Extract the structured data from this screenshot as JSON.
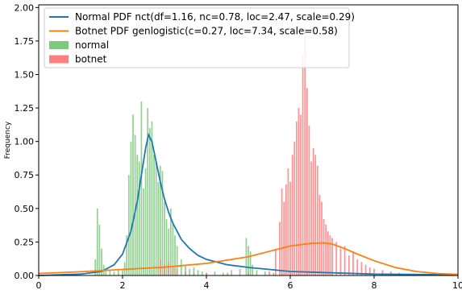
{
  "chart_data": {
    "type": "bar",
    "ylabel": "Frequency",
    "xlim": [
      0,
      10
    ],
    "ylim": [
      0,
      2.02
    ],
    "grid": false,
    "legend_position": "top-left",
    "x_ticks": [
      0,
      2,
      4,
      6,
      8,
      10
    ],
    "x_tick_labels": [
      "0",
      "2",
      "4",
      "6",
      "8",
      "10"
    ],
    "y_ticks": [
      0,
      0.25,
      0.5,
      0.75,
      1.0,
      1.25,
      1.5,
      1.75,
      2.0
    ],
    "y_tick_labels": [
      "0.00",
      "0.25",
      "0.50",
      "0.75",
      "1.00",
      "1.25",
      "1.50",
      "1.75",
      "2.00"
    ],
    "series": [
      {
        "name": "Normal PDF nct(df=1.16, nc=0.78, loc=2.47, scale=0.29)",
        "kind": "line",
        "color": "#1f77b4",
        "x": [
          0,
          1.0,
          1.5,
          1.8,
          2.0,
          2.2,
          2.35,
          2.45,
          2.55,
          2.62,
          2.7,
          2.8,
          2.9,
          3.0,
          3.1,
          3.2,
          3.4,
          3.6,
          3.8,
          4.0,
          4.5,
          5.0,
          6.0,
          7.0,
          8.0,
          10.0
        ],
        "y": [
          0.0,
          0.01,
          0.03,
          0.08,
          0.16,
          0.33,
          0.55,
          0.75,
          0.95,
          1.05,
          1.0,
          0.85,
          0.7,
          0.57,
          0.47,
          0.39,
          0.27,
          0.2,
          0.15,
          0.12,
          0.08,
          0.06,
          0.03,
          0.02,
          0.01,
          0.005
        ]
      },
      {
        "name": "Botnet PDF genlogistic(c=0.27, loc=7.34, scale=0.58)",
        "kind": "line",
        "color": "#ff7f0e",
        "x": [
          0,
          1,
          2,
          3,
          4,
          5,
          5.5,
          6.0,
          6.5,
          6.8,
          7.0,
          7.3,
          7.6,
          8.0,
          8.5,
          9.0,
          9.5,
          10.0
        ],
        "y": [
          0.015,
          0.028,
          0.045,
          0.062,
          0.09,
          0.14,
          0.18,
          0.22,
          0.24,
          0.243,
          0.235,
          0.2,
          0.16,
          0.11,
          0.06,
          0.03,
          0.015,
          0.008
        ]
      },
      {
        "name": "normal",
        "kind": "histogram",
        "color": "#7fc97f",
        "x": [
          1.35,
          1.4,
          1.45,
          1.5,
          1.55,
          1.6,
          1.7,
          1.8,
          1.9,
          2.0,
          2.05,
          2.1,
          2.15,
          2.2,
          2.25,
          2.3,
          2.35,
          2.4,
          2.45,
          2.5,
          2.55,
          2.6,
          2.65,
          2.7,
          2.75,
          2.8,
          2.85,
          2.9,
          2.95,
          3.0,
          3.05,
          3.1,
          3.15,
          3.2,
          3.25,
          3.3,
          3.4,
          3.5,
          3.6,
          3.7,
          3.8,
          3.9,
          4.0,
          4.2,
          4.4,
          4.6,
          4.8,
          4.95,
          5.0,
          5.05,
          5.1,
          5.2,
          5.4,
          5.6,
          5.8,
          6.0,
          6.2,
          6.4,
          6.6,
          6.8,
          7.0
        ],
        "y": [
          0.12,
          0.5,
          0.38,
          0.2,
          0.08,
          0.05,
          0.04,
          0.03,
          0.04,
          0.05,
          0.1,
          0.3,
          0.75,
          1.0,
          1.2,
          1.05,
          0.9,
          0.85,
          1.3,
          0.65,
          0.8,
          1.25,
          1.1,
          1.15,
          0.9,
          0.85,
          0.7,
          0.82,
          0.78,
          0.55,
          0.42,
          0.35,
          0.5,
          0.38,
          0.3,
          0.22,
          0.12,
          0.08,
          0.05,
          0.06,
          0.04,
          0.03,
          0.02,
          0.03,
          0.02,
          0.04,
          0.05,
          0.28,
          0.22,
          0.18,
          0.08,
          0.04,
          0.03,
          0.02,
          0.03,
          0.02,
          0.02,
          0.02,
          0.01,
          0.01,
          0.01
        ]
      },
      {
        "name": "botnet",
        "kind": "histogram",
        "color": "#ff7f7f",
        "x": [
          2.9,
          3.0,
          3.1,
          3.2,
          3.3,
          3.5,
          3.7,
          4.0,
          4.5,
          5.0,
          5.5,
          5.65,
          5.75,
          5.8,
          5.85,
          5.9,
          5.95,
          6.0,
          6.05,
          6.1,
          6.15,
          6.2,
          6.25,
          6.3,
          6.35,
          6.4,
          6.45,
          6.5,
          6.55,
          6.6,
          6.65,
          6.7,
          6.75,
          6.8,
          6.85,
          6.9,
          6.95,
          7.0,
          7.1,
          7.2,
          7.3,
          7.4,
          7.5,
          7.6,
          7.7,
          7.8,
          7.9,
          8.0,
          8.2,
          8.4,
          8.6,
          8.8,
          9.0
        ],
        "y": [
          0.12,
          0.08,
          0.1,
          0.06,
          0.05,
          0.03,
          0.02,
          0.02,
          0.02,
          0.02,
          0.03,
          0.2,
          0.4,
          0.65,
          0.55,
          0.68,
          0.8,
          0.7,
          0.9,
          1.0,
          1.15,
          1.25,
          1.2,
          1.65,
          1.85,
          1.4,
          1.12,
          0.85,
          0.95,
          0.9,
          0.82,
          0.6,
          0.55,
          0.42,
          0.38,
          0.33,
          0.3,
          0.28,
          0.25,
          0.2,
          0.22,
          0.15,
          0.18,
          0.12,
          0.1,
          0.08,
          0.06,
          0.05,
          0.04,
          0.03,
          0.02,
          0.01,
          0.01
        ]
      }
    ]
  }
}
